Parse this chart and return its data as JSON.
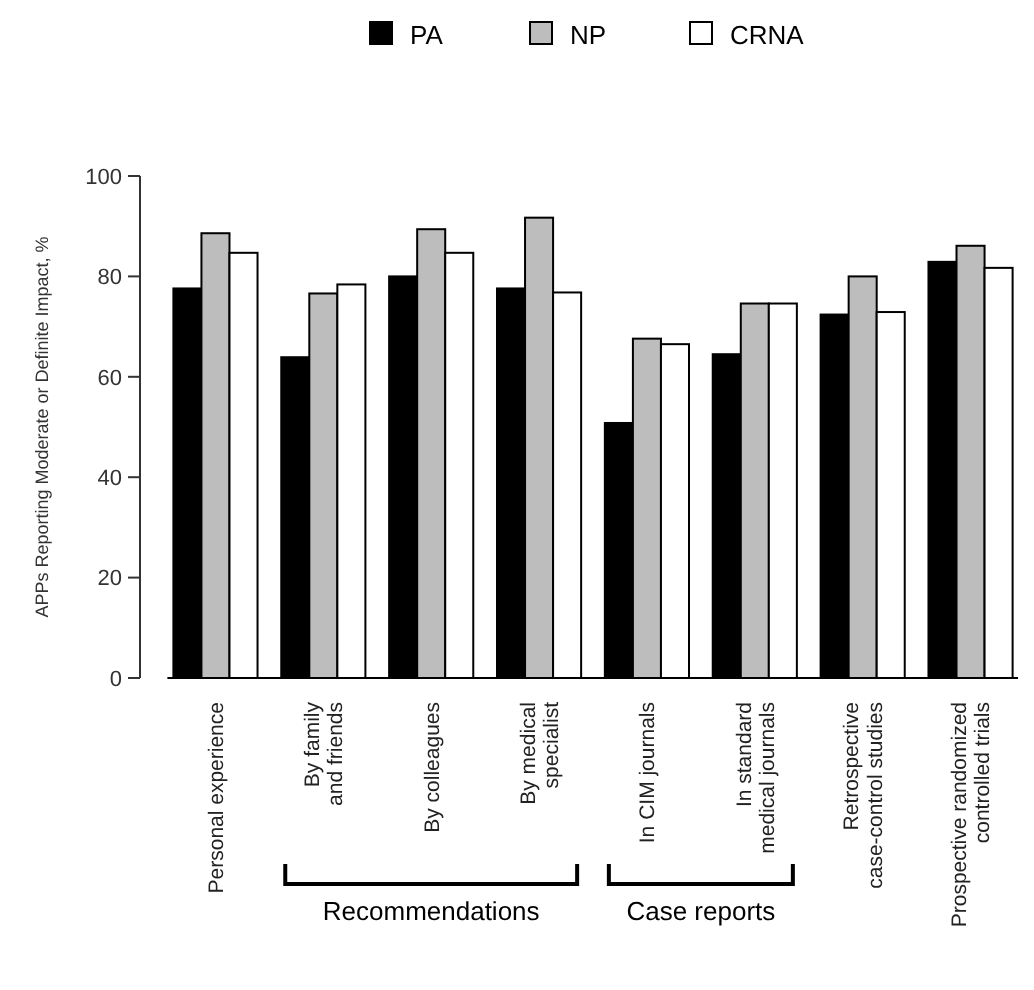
{
  "chart_data": {
    "type": "bar",
    "ylabel": "APPs Reporting Moderate or Definite Impact, %",
    "categories": [
      "Personal experience",
      "By family\nand friends",
      "By colleagues",
      "By medical\nspecialist",
      "In CIM journals",
      "In standard\nmedical journals",
      "Retrospective\ncase-control studies",
      "Prospective randomized\ncontrolled trials"
    ],
    "series": [
      {
        "name": "PA",
        "color": "#000000",
        "values": [
          77.6,
          63.9,
          80,
          77.6,
          50.8,
          64.5,
          72.4,
          82.9
        ]
      },
      {
        "name": "NP",
        "color": "#bdbdbd",
        "values": [
          88.6,
          76.6,
          89.4,
          91.7,
          67.6,
          74.6,
          80,
          86.1
        ]
      },
      {
        "name": "CRNA",
        "color": "#ffffff",
        "values": [
          84.7,
          78.4,
          84.7,
          76.8,
          66.5,
          74.6,
          72.9,
          81.7
        ]
      }
    ],
    "ylim": [
      0,
      100
    ],
    "yticks": [
      0,
      20,
      40,
      60,
      80,
      100
    ],
    "legend": "top",
    "annotations": [
      "Recommendations",
      "Case reports"
    ]
  }
}
